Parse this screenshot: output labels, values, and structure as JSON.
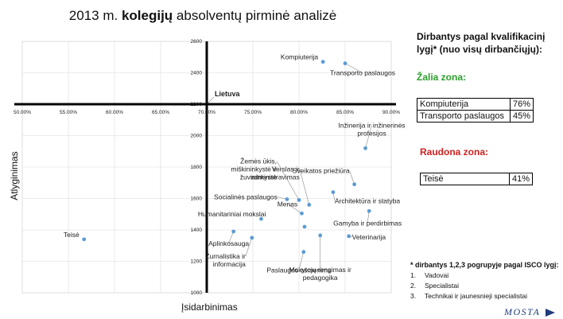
{
  "title_prefix": "2013 m. ",
  "title_bold": "kolegijų",
  "title_suffix": " absolventų pirminė analizė",
  "colors": {
    "point": "#5b9bd5",
    "axis": "#000000",
    "grid": "#d9d9d9",
    "green": "#2aa02a",
    "red": "#d02020"
  },
  "chart_data": {
    "type": "scatter",
    "xlabel": "Įsidarbinimas",
    "ylabel": "Atlyginimas",
    "xlim": [
      0.5,
      0.9
    ],
    "ylim": [
      1000,
      2600
    ],
    "x_ticks": [
      "50.00%",
      "55.00%",
      "60.00%",
      "65.00%",
      "70.00%",
      "75.00%",
      "80.00%",
      "85.00%",
      "90.00%"
    ],
    "y_ticks": [
      "1000",
      "1200",
      "1400",
      "1600",
      "1800",
      "2000",
      "2200",
      "2400",
      "2600"
    ],
    "crosshair": {
      "x": 0.7,
      "y": 2200,
      "label": "Lietuva"
    },
    "grid": true,
    "points": [
      {
        "label": "Kompiuterija",
        "x": 0.826,
        "y": 2470
      },
      {
        "label": "Transporto paslaugos",
        "x": 0.85,
        "y": 2460
      },
      {
        "label": "Inžinerija ir inžinerinės profesijos",
        "x": 0.872,
        "y": 1920
      },
      {
        "label": "Verslas ir administravimas",
        "x": 0.811,
        "y": 1560
      },
      {
        "label": "Sveikatos priežiūra",
        "x": 0.86,
        "y": 1690
      },
      {
        "label": "Architektūra ir statyba",
        "x": 0.837,
        "y": 1640
      },
      {
        "label": "Žemės ūkis, miškininkystė ir žuvininkystė",
        "x": 0.8,
        "y": 1590
      },
      {
        "label": "Socialinės paslaugos",
        "x": 0.787,
        "y": 1595
      },
      {
        "label": "Menas",
        "x": 0.803,
        "y": 1505
      },
      {
        "label": "Humanitariniai mokslai",
        "x": 0.759,
        "y": 1470
      },
      {
        "label": "Gamyba ir perdirbimas",
        "x": 0.876,
        "y": 1520
      },
      {
        "label": "Teisė",
        "x": 0.567,
        "y": 1340
      },
      {
        "label": "Aplinkosauga",
        "x": 0.729,
        "y": 1390
      },
      {
        "label": "Žurnalistika ir informacija",
        "x": 0.749,
        "y": 1350
      },
      {
        "label": "Veterinarija",
        "x": 0.854,
        "y": 1360
      },
      {
        "label": "Mokytojų rengimas ir pedagogika",
        "x": 0.806,
        "y": 1420
      },
      {
        "label": "Mokytojų rengimas ir pedagogika",
        "x": 0.823,
        "y": 1365
      },
      {
        "label": "Paslaugos asmenims",
        "x": 0.805,
        "y": 1260
      }
    ]
  },
  "side_panel": {
    "heading": "Dirbantys pagal kvalifikacinį lygį* (nuo visų dirbančiųjų):",
    "green_zone_title": "Žalia zona:",
    "green_rows": [
      {
        "name": "Kompiuterija",
        "pct": "76%"
      },
      {
        "name": "Transporto paslaugos",
        "pct": "45%"
      }
    ],
    "red_zone_title": "Raudona zona:",
    "red_rows": [
      {
        "name": "Teisė",
        "pct": "41%"
      }
    ],
    "isco_note": "* dirbantys 1,2,3 pogrupyje pagal ISCO lygį:",
    "isco_items": [
      {
        "num": "1.",
        "text": "Vadovai"
      },
      {
        "num": "2.",
        "text": "Specialistai"
      },
      {
        "num": "3.",
        "text": "Technikai ir jaunesnieji specialistai"
      }
    ]
  },
  "logo_text": "MOSTA"
}
